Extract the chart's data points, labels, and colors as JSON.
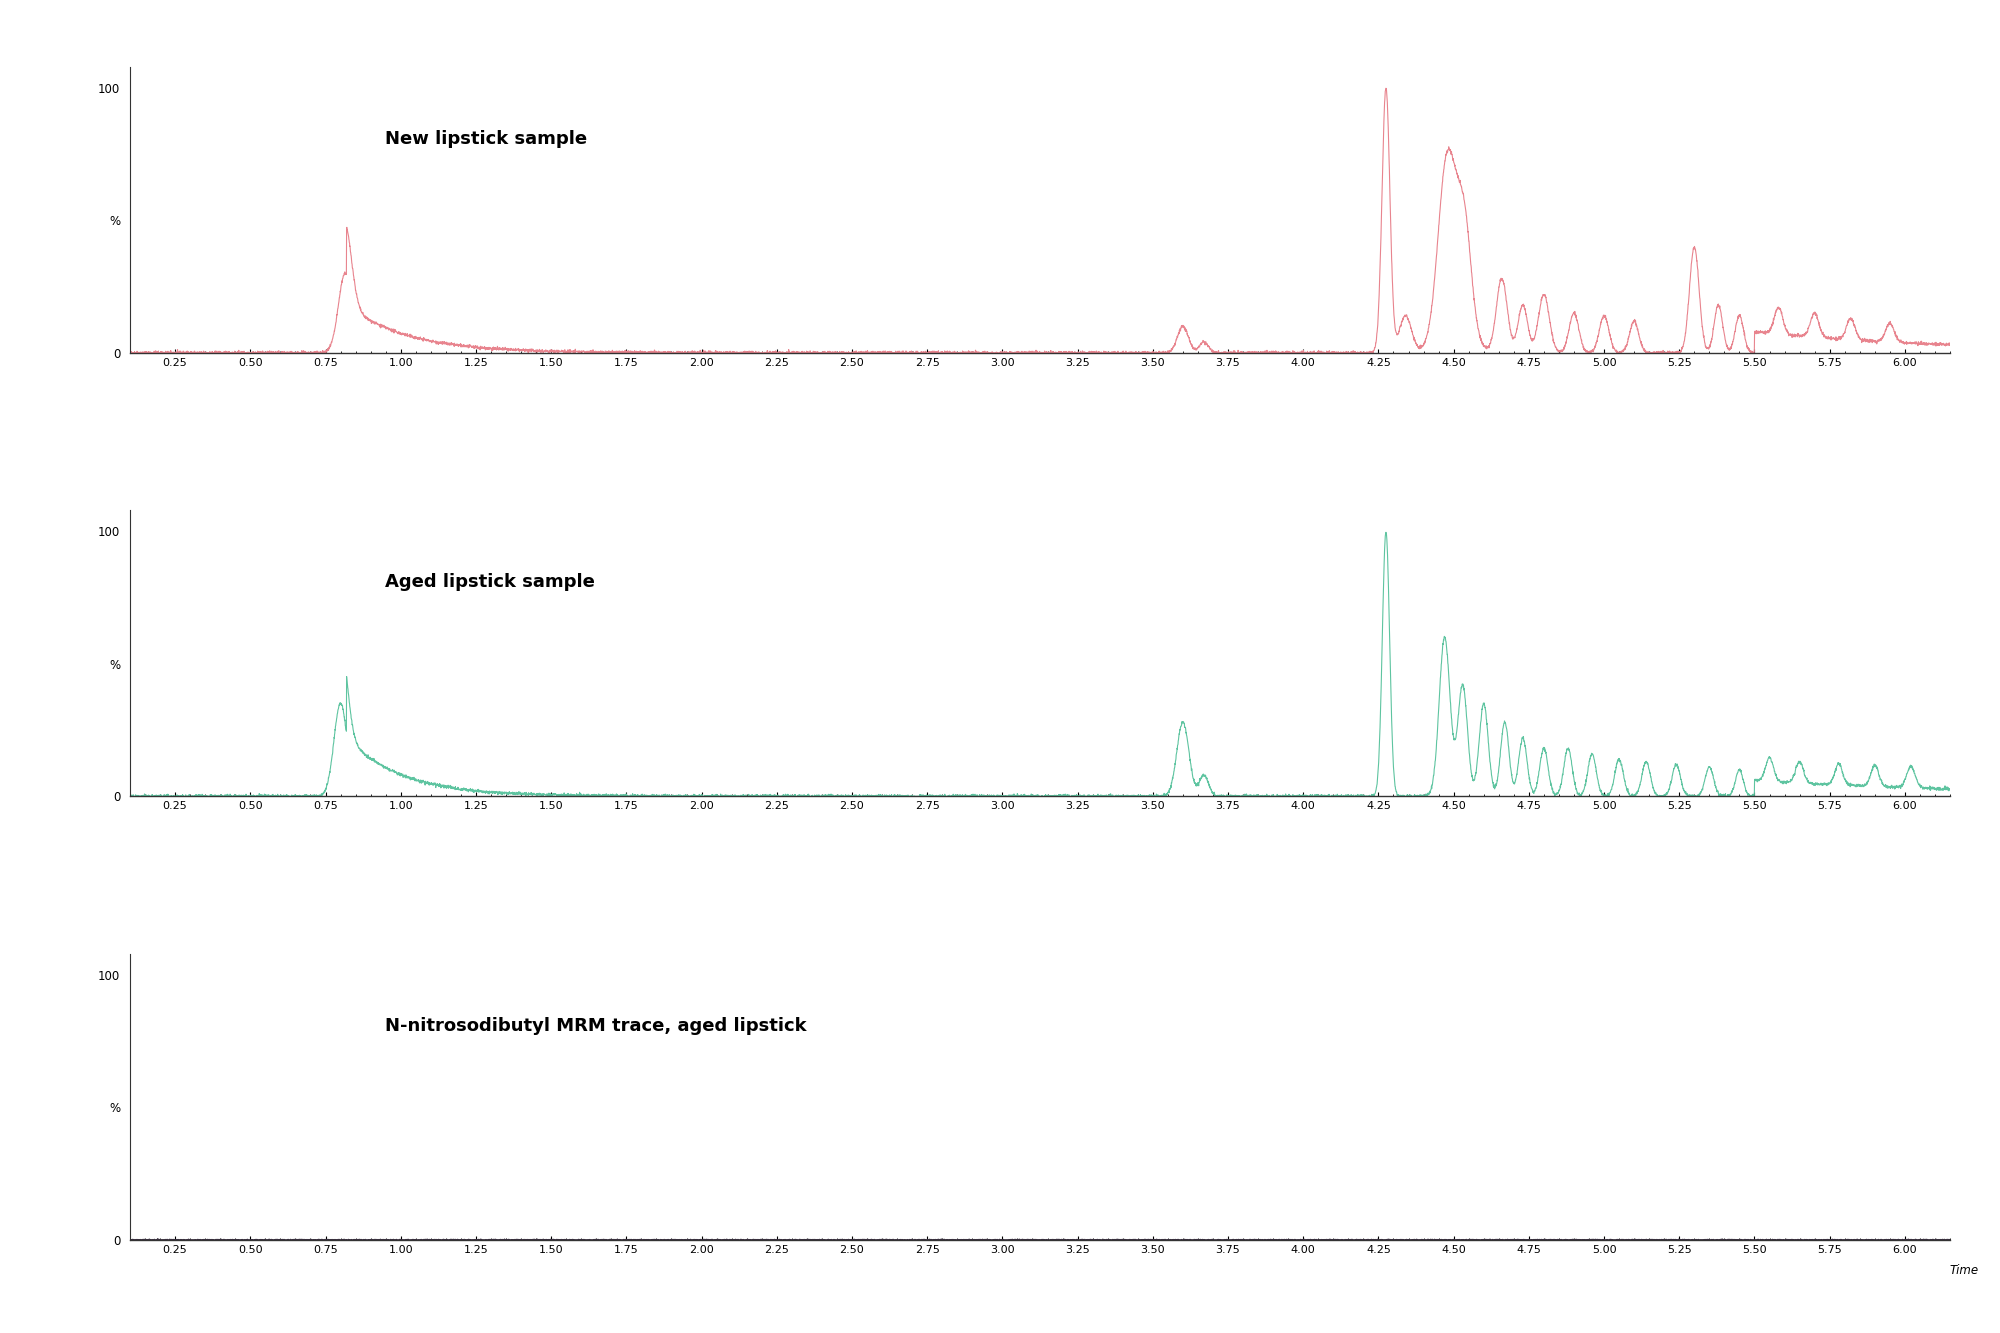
{
  "subplot1_label": "New lipstick sample",
  "subplot2_label": "Aged lipstick sample",
  "subplot3_label": "N-nitrosodibutyl MRM trace, aged lipstick",
  "xlabel": "Time",
  "color1": "#e8848e",
  "color2": "#5ec4a0",
  "color3": "#3a3040",
  "xmin": 0.1,
  "xmax": 6.15,
  "ymin": 0,
  "ymax": 108,
  "xticks": [
    0.25,
    0.5,
    0.75,
    1.0,
    1.25,
    1.5,
    1.75,
    2.0,
    2.25,
    2.5,
    2.75,
    3.0,
    3.25,
    3.5,
    3.75,
    4.0,
    4.25,
    4.5,
    4.75,
    5.0,
    5.25,
    5.5,
    5.75,
    6.0
  ],
  "xtick_labels": [
    "0.25",
    "0.50",
    "0.75",
    "1.00",
    "1.25",
    "1.50",
    "1.75",
    "2.00",
    "2.25",
    "2.50",
    "2.75",
    "3.00",
    "3.25",
    "3.50",
    "3.75",
    "4.00",
    "4.25",
    "4.50",
    "4.75",
    "5.00",
    "5.25",
    "5.50",
    "5.75",
    "6.00"
  ],
  "background_color": "#ffffff"
}
